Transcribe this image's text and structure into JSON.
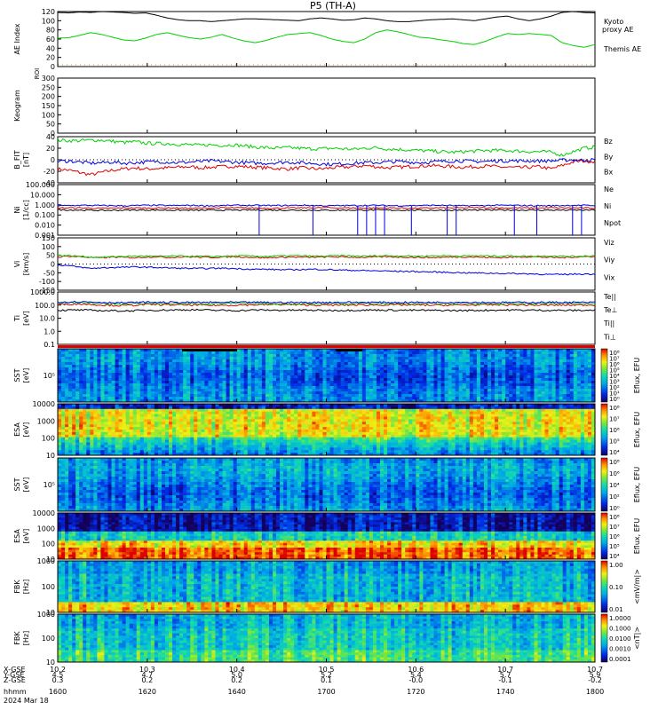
{
  "title": "P5 (TH-A)",
  "colors": {
    "kyoto": "#00d000",
    "themis": "#000000",
    "red": "#e00000",
    "green": "#00d000",
    "blue": "#0000e0",
    "black": "#000000"
  },
  "time_axis": {
    "tick_labels": [
      "1600",
      "1620",
      "1640",
      "1700",
      "1720",
      "1740",
      "1800"
    ],
    "date_label": "2024 Mar 18",
    "row_labels": [
      "X-GSE",
      "Y-GSE",
      "Z-GSE",
      "hhmm"
    ],
    "rows": [
      [
        "10.2",
        "10.3",
        "10.4",
        "10.5",
        "10.6",
        "10.7",
        "10.7"
      ],
      [
        "4.5",
        "4.7",
        "5.0",
        "5.2",
        "5.4",
        "5.7",
        "5.9"
      ],
      [
        "0.3",
        "0.2",
        "0.2",
        "0.1",
        "-0.0",
        "-0.1",
        "-0.2"
      ]
    ]
  },
  "chart_data": [
    {
      "type": "line",
      "ylabel": "AE Index",
      "ylim": [
        0,
        120
      ],
      "yticks": [
        "120",
        "100",
        "80",
        "60",
        "40",
        "20",
        "0"
      ],
      "series": [
        {
          "name": "Kyoto",
          "name2": "proxy AE",
          "color": "#00d000",
          "values": [
            62,
            63,
            68,
            74,
            70,
            64,
            58,
            56,
            62,
            70,
            74,
            68,
            63,
            60,
            64,
            70,
            62,
            56,
            52,
            57,
            64,
            70,
            72,
            74,
            68,
            60,
            55,
            52,
            60,
            74,
            80,
            76,
            70,
            64,
            62,
            58,
            55,
            50,
            48,
            55,
            64,
            72,
            70,
            72,
            70,
            68,
            52,
            46,
            42,
            48
          ]
        },
        {
          "name": "Themis AE",
          "color": "#000000",
          "values": [
            118,
            117,
            119,
            118,
            120,
            119,
            118,
            116,
            117,
            112,
            106,
            102,
            100,
            100,
            98,
            100,
            102,
            104,
            104,
            103,
            102,
            101,
            100,
            104,
            106,
            104,
            101,
            102,
            106,
            104,
            100,
            98,
            98,
            100,
            102,
            103,
            104,
            102,
            100,
            104,
            108,
            110,
            104,
            100,
            104,
            110,
            118,
            120,
            118,
            117
          ]
        }
      ]
    },
    {
      "type": "line",
      "ylabel": "Keogram",
      "ylim": [
        0,
        300
      ],
      "yticks": [
        "300",
        "250",
        "200",
        "150",
        "100",
        "50",
        "0"
      ],
      "top_label": "ROI",
      "series": []
    },
    {
      "type": "line",
      "ylabel": "B_FIT",
      "ylabel2": "[nT]",
      "ylim": [
        -40,
        40
      ],
      "yticks": [
        "40",
        "20",
        "0",
        "-20",
        "-40"
      ],
      "legend": [
        "Bz",
        "By",
        "Bx"
      ],
      "series": [
        {
          "name": "Bz",
          "color": "#e00000",
          "values": [
            -16,
            -18,
            -22,
            -26,
            -22,
            -18,
            -16,
            -14,
            -16,
            -15,
            -14,
            -13,
            -12,
            -14,
            -13,
            -12,
            -11,
            -12,
            -13,
            -14,
            -15,
            -16,
            -14,
            -15,
            -16,
            -14,
            -13,
            -12,
            -10,
            -12,
            -14,
            -13,
            -12,
            -11,
            -10,
            -11,
            -12,
            -13,
            -12,
            -11,
            -12,
            -13,
            -14,
            -13,
            -12,
            -16,
            -10,
            -4,
            -2,
            -3
          ]
        },
        {
          "name": "By",
          "color": "#00d000",
          "values": [
            34,
            33,
            33,
            34,
            34,
            32,
            30,
            31,
            29,
            28,
            28,
            27,
            26,
            25,
            26,
            25,
            26,
            24,
            22,
            21,
            20,
            21,
            20,
            19,
            19,
            20,
            19,
            18,
            20,
            21,
            19,
            18,
            17,
            16,
            15,
            14,
            13,
            14,
            15,
            16,
            16,
            16,
            15,
            14,
            14,
            13,
            8,
            14,
            20,
            22
          ]
        },
        {
          "name": "Bx",
          "color": "#0000e0",
          "values": [
            -3,
            -2,
            -4,
            -6,
            -5,
            -4,
            -6,
            -5,
            -4,
            -3,
            -4,
            -5,
            -4,
            -3,
            -2,
            -3,
            -4,
            -5,
            -6,
            -6,
            -5,
            -4,
            -5,
            -6,
            -7,
            -8,
            -7,
            -6,
            -5,
            -5,
            -4,
            -3,
            -4,
            -5,
            -4,
            -3,
            -2,
            -2,
            -3,
            -3,
            -2,
            -2,
            -2,
            -2,
            -2,
            -2,
            -1,
            0,
            -1,
            0
          ]
        }
      ]
    },
    {
      "type": "line",
      "ylabel": "Ni",
      "ylabel2": "[1/cc]",
      "log": true,
      "ylim": [
        0.001,
        100
      ],
      "yticks": [
        "100.000",
        "10.000",
        "1.000",
        "0.100",
        "0.010",
        "0.001"
      ],
      "legend": [
        "Ne",
        "Ni",
        "Npot"
      ],
      "series": [
        {
          "name": "Ne",
          "color": "#e00000",
          "values": [
            0.5,
            0.5,
            0.45,
            0.5,
            0.48,
            0.5,
            0.46,
            0.5,
            0.5,
            0.48,
            0.47,
            0.5,
            0.52,
            0.5,
            0.48,
            0.5,
            0.46,
            0.5,
            0.5,
            0.52,
            0.5,
            0.49,
            0.5,
            0.5,
            0.48
          ]
        },
        {
          "name": "Ni",
          "color": "#000000",
          "values": [
            0.32,
            0.3,
            0.28,
            0.3,
            0.31,
            0.3,
            0.29,
            0.3,
            0.3,
            0.31,
            0.3,
            0.3,
            0.29,
            0.3,
            0.31,
            0.3,
            0.3,
            0.29,
            0.3,
            0.3,
            0.31,
            0.3,
            0.3,
            0.3,
            0.3
          ]
        },
        {
          "name": "Npot",
          "color": "#0000e0",
          "values": [
            0.8,
            0.9,
            0.85,
            0.8,
            0.9,
            0.85,
            0.88,
            0.8,
            0.9,
            0.86,
            0.85,
            0.9,
            0.8,
            0.85,
            0.9,
            0.82,
            0.85,
            0.9,
            0.8,
            0.85,
            0.9,
            0.85,
            0.8,
            0.9,
            0.85
          ],
          "dropouts_hhmm": [
            "16:45",
            "16:57",
            "17:07",
            "17:09",
            "17:11",
            "17:13",
            "17:19",
            "17:27",
            "17:29",
            "17:42",
            "17:47",
            "17:55",
            "17:57"
          ]
        }
      ]
    },
    {
      "type": "line",
      "ylabel": "Vi",
      "ylabel2": "[km/s]",
      "ylim": [
        -150,
        150
      ],
      "yticks": [
        "150",
        "100",
        "50",
        "0",
        "-50",
        "-100",
        "-150"
      ],
      "legend": [
        "Viz",
        "Viy",
        "Vix"
      ],
      "series": [
        {
          "name": "Viz",
          "color": "#e00000",
          "values": [
            40,
            45,
            42,
            38,
            35,
            40,
            38,
            36,
            40,
            42,
            38,
            40,
            41,
            39,
            38,
            40,
            42,
            40,
            38,
            36,
            38,
            40,
            39,
            38,
            40,
            41,
            40,
            39,
            38,
            40,
            42,
            40,
            39,
            38,
            37,
            38,
            40,
            41,
            40,
            38,
            37,
            38,
            40,
            42,
            40,
            38,
            36,
            40,
            42,
            44
          ]
        },
        {
          "name": "Viy",
          "color": "#00d000",
          "values": [
            50,
            48,
            45,
            40,
            38,
            42,
            44,
            45,
            46,
            44,
            45,
            46,
            45,
            44,
            43,
            45,
            46,
            47,
            45,
            44,
            46,
            47,
            48,
            46,
            45,
            47,
            48,
            46,
            45,
            47,
            48,
            47,
            46,
            45,
            47,
            48,
            47,
            46,
            48,
            47,
            46,
            47,
            46,
            45,
            46,
            47,
            45,
            44,
            46,
            48
          ]
        },
        {
          "name": "Vix",
          "color": "#0000e0",
          "values": [
            -5,
            -10,
            -18,
            -25,
            -22,
            -20,
            -18,
            -17,
            -18,
            -20,
            -22,
            -24,
            -25,
            -26,
            -25,
            -24,
            -26,
            -28,
            -30,
            -30,
            -32,
            -33,
            -32,
            -30,
            -31,
            -33,
            -35,
            -36,
            -38,
            -39,
            -40,
            -42,
            -42,
            -44,
            -45,
            -47,
            -48,
            -50,
            -51,
            -52,
            -53,
            -54,
            -55,
            -56,
            -58,
            -60,
            -60,
            -58,
            -57,
            -58
          ]
        }
      ]
    },
    {
      "type": "line",
      "ylabel": "Ti",
      "ylabel2": "[eV]",
      "log": true,
      "ylim": [
        0.1,
        1000
      ],
      "yticks": [
        "1000.0",
        "100.0",
        "10.0",
        "1.0",
        "0.1"
      ],
      "legend": [
        "Te||",
        "Te⊥",
        "Ti||",
        "Ti⊥"
      ],
      "series": [
        {
          "name": "Te||",
          "color": "#000000",
          "values": [
            40,
            42,
            38,
            36,
            40,
            42,
            44,
            40,
            38,
            42,
            40,
            41,
            39,
            40,
            42,
            41,
            40,
            39,
            38,
            40,
            42,
            41,
            40,
            39,
            41
          ]
        },
        {
          "name": "Te⊥",
          "color": "#e00000",
          "values": [
            110,
            120,
            100,
            90,
            110,
            105,
            100,
            95,
            100,
            105,
            110,
            100,
            98,
            100,
            102,
            104,
            100,
            98,
            100,
            102,
            104,
            100,
            98,
            100,
            102
          ]
        },
        {
          "name": "Ti||",
          "color": "#00d000",
          "values": [
            140,
            150,
            130,
            120,
            135,
            130,
            128,
            130,
            132,
            130,
            128,
            126,
            130,
            132,
            130,
            128,
            130,
            132,
            134,
            130,
            128,
            130,
            132,
            130,
            128
          ]
        },
        {
          "name": "Ti⊥",
          "color": "#0000e0",
          "values": [
            170,
            180,
            160,
            150,
            165,
            160,
            158,
            160,
            162,
            160,
            158,
            156,
            160,
            162,
            160,
            158,
            160,
            162,
            164,
            160,
            158,
            160,
            162,
            160,
            158
          ]
        }
      ]
    },
    {
      "type": "heatmap",
      "ylabel": "SST",
      "ylabel2": "[eV]",
      "yticks": [
        "10⁵"
      ],
      "colorbar_label": "Eflux, EFU",
      "colorbar_ticks": [
        "10⁸",
        "10⁷",
        "10⁶",
        "10⁵",
        "10⁴",
        "10³",
        "10²",
        "10¹",
        "10⁰"
      ]
    },
    {
      "type": "heatmap",
      "ylabel": "ESA",
      "ylabel2": "[eV]",
      "yticks": [
        "10000",
        "1000",
        "100",
        "10"
      ],
      "colorbar_label": "Eflux, EFU",
      "colorbar_ticks": [
        "10⁸",
        "10⁷",
        "10⁶",
        "10⁵",
        "10⁴"
      ]
    },
    {
      "type": "heatmap",
      "ylabel": "SST",
      "ylabel2": "[eV]",
      "yticks": [
        "10⁵"
      ],
      "colorbar_label": "Eflux, EFU",
      "colorbar_ticks": [
        "10⁸",
        "10⁶",
        "10⁴",
        "10²",
        "10⁰"
      ]
    },
    {
      "type": "heatmap",
      "ylabel": "ESA",
      "ylabel2": "[eV]",
      "yticks": [
        "10000",
        "1000",
        "100",
        "10"
      ],
      "colorbar_label": "Eflux, EFU",
      "colorbar_ticks": [
        "10⁸",
        "10⁷",
        "10⁶",
        "10⁵",
        "10⁴"
      ]
    },
    {
      "type": "heatmap",
      "ylabel": "FBK",
      "ylabel2": "[Hz]",
      "yticks": [
        "1000",
        "100",
        "10"
      ],
      "colorbar_label": "<mV/m|>",
      "colorbar_ticks": [
        "1.00",
        "0.10",
        "0.01"
      ]
    },
    {
      "type": "heatmap",
      "ylabel": "FBK",
      "ylabel2": "[Hz]",
      "yticks": [
        "1000",
        "100",
        "10"
      ],
      "colorbar_label": "<nT|>",
      "colorbar_ticks": [
        "1.0000",
        "0.1000",
        "0.0100",
        "0.0010",
        "0.0001"
      ]
    }
  ]
}
